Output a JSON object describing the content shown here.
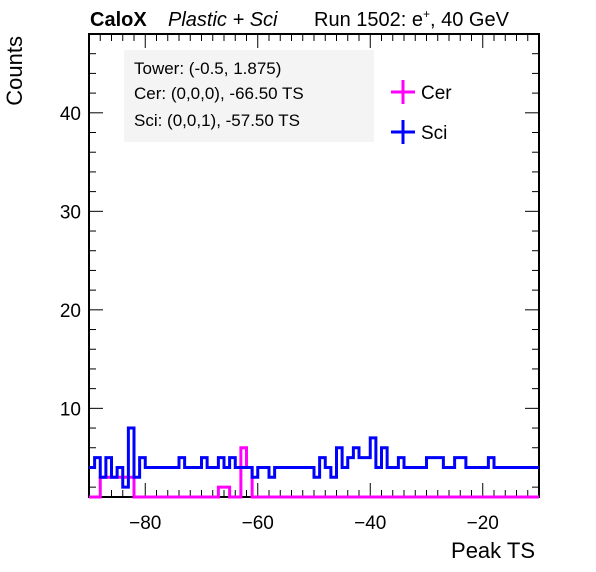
{
  "header": {
    "experiment": "CaloX",
    "detector": "Plastic + Sci",
    "run_prefix": "Run 1502: e",
    "run_charge": "+",
    "run_suffix": ", 40 GeV"
  },
  "info_box": {
    "tower": "Tower: (-0.5, 1.875)",
    "cer": "Cer: (0,0,0), -66.50 TS",
    "sci": "Sci: (0,0,1), -57.50 TS"
  },
  "chart_data": {
    "type": "histogram",
    "xlabel": "Peak TS",
    "ylabel": "Counts",
    "xlim": [
      -90,
      -10
    ],
    "ylim": [
      1,
      48
    ],
    "x_ticks": [
      -80,
      -60,
      -40,
      -20
    ],
    "y_ticks": [
      10,
      20,
      30,
      40
    ],
    "bin_width": 1,
    "bin_start": -90,
    "legend_position": "top-right",
    "series": [
      {
        "name": "Cer",
        "color": "#ff00ff",
        "values": [
          1,
          1,
          3,
          3,
          3,
          3,
          3,
          3,
          1,
          1,
          1,
          1,
          1,
          1,
          1,
          1,
          1,
          1,
          1,
          1,
          1,
          1,
          1,
          2,
          2,
          1,
          1,
          6,
          4,
          1,
          1,
          1,
          1,
          1,
          1,
          1,
          1,
          1,
          1,
          1,
          1,
          1,
          1,
          1,
          1,
          1,
          1,
          1,
          1,
          1,
          1,
          1,
          1,
          1,
          1,
          1,
          1,
          1,
          1,
          1,
          1,
          1,
          1,
          1,
          1,
          1,
          1,
          1,
          1,
          1,
          1,
          1,
          1,
          1,
          1,
          1,
          1,
          1,
          1,
          1
        ]
      },
      {
        "name": "Sci",
        "color": "#0000ff",
        "values": [
          4,
          5,
          3,
          5,
          3,
          4,
          2,
          8,
          3,
          5,
          4,
          4,
          4,
          4,
          4,
          4,
          5,
          4,
          4,
          4,
          5,
          4,
          4,
          5,
          4,
          5,
          4,
          4,
          4,
          3,
          4,
          4,
          3,
          4,
          4,
          4,
          4,
          4,
          4,
          4,
          3,
          5,
          4,
          3,
          6,
          4,
          5,
          6,
          5,
          5,
          7,
          4,
          6,
          4,
          4,
          5,
          4,
          4,
          4,
          4,
          5,
          5,
          5,
          4,
          4,
          5,
          5,
          4,
          4,
          4,
          4,
          5,
          4,
          4,
          4,
          4,
          4,
          4,
          4,
          4
        ]
      }
    ]
  }
}
